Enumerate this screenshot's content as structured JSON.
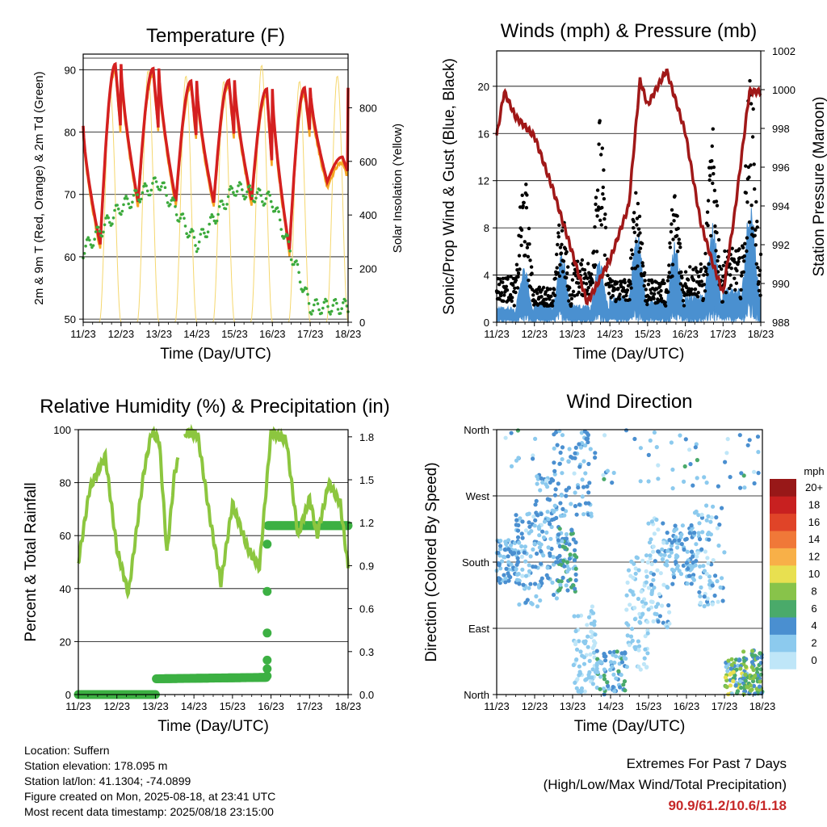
{
  "chart_data": [
    {
      "type": "line",
      "title": "Temperature (F)",
      "xlabel": "Time (Day/UTC)",
      "ylabel": "2m & 9m T (Red, Orange) & 2m Td (Green)",
      "ylabel_right": "Solar Insolation (Yellow)",
      "x_ticks": [
        "11/23",
        "12/23",
        "13/23",
        "14/23",
        "15/23",
        "16/23",
        "17/23",
        "18/23"
      ],
      "ylim": [
        49.5,
        92.5
      ],
      "y_ticks": [
        50,
        60,
        70,
        80,
        90
      ],
      "ylim_right": [
        0,
        1000
      ],
      "y_ticks_right": [
        0,
        200,
        400,
        600,
        800
      ],
      "colors": {
        "t2m": "#d42020",
        "t9m": "#f5a623",
        "td": "#3caa3c",
        "solar": "#f5d76e"
      },
      "series": [
        {
          "name": "2m T",
          "daily_max": [
            90.9,
            90.2,
            88.2,
            88.3,
            86.9,
            87.1,
            76.0
          ],
          "daily_min": [
            62.0,
            68.8,
            68.9,
            68.7,
            69.1,
            61.2,
            72.0
          ]
        },
        {
          "name": "2m Td",
          "daily_values": [
            61.0,
            68.0,
            72.0,
            62.0,
            71.0,
            69.0,
            52.0
          ]
        },
        {
          "name": "Solar Insolation",
          "daily_peak": [
            860,
            940,
            920,
            900,
            960,
            900,
            920
          ]
        }
      ]
    },
    {
      "type": "scatter",
      "title": "Winds (mph) & Pressure (mb)",
      "xlabel": "Time (Day/UTC)",
      "ylabel": "Sonic/Prop Wind & Gust (Blue, Black)",
      "ylabel_right": "Station Pressure (Maroon)",
      "x_ticks": [
        "11/23",
        "12/23",
        "13/23",
        "14/23",
        "15/23",
        "16/23",
        "17/23",
        "18/23"
      ],
      "ylim": [
        0,
        23
      ],
      "y_ticks": [
        0,
        4,
        8,
        12,
        16,
        20
      ],
      "ylim_right": [
        988,
        1002
      ],
      "y_ticks_right": [
        988,
        990,
        992,
        994,
        996,
        998,
        1000,
        1002
      ],
      "colors": {
        "wind": "#4a90d0",
        "gust": "#000000",
        "pressure": "#a01818"
      },
      "pressure_series": [
        [
          11.0,
          997.6
        ],
        [
          11.2,
          999.9
        ],
        [
          11.5,
          998.6
        ],
        [
          12.0,
          997.6
        ],
        [
          12.5,
          994.8
        ],
        [
          13.0,
          991.6
        ],
        [
          13.4,
          989.0
        ],
        [
          14.0,
          991.2
        ],
        [
          14.5,
          994.0
        ],
        [
          14.8,
          1000.5
        ],
        [
          15.0,
          999.2
        ],
        [
          15.5,
          1001.0
        ],
        [
          16.0,
          997.8
        ],
        [
          16.4,
          993.2
        ],
        [
          16.7,
          991.2
        ],
        [
          17.0,
          989.5
        ],
        [
          17.3,
          993.5
        ],
        [
          17.7,
          999.9
        ],
        [
          18.0,
          999.9
        ]
      ],
      "gust_daily_peak": [
        12.3,
        9.0,
        17.2,
        11.8,
        11.0,
        16.0,
        20.6
      ],
      "wind_daily_peak": [
        4.8,
        6.0,
        5.5,
        8.0,
        7.0,
        8.5,
        10.6
      ]
    },
    {
      "type": "line",
      "title": "Relative Humidity (%) & Precipitation (in)",
      "xlabel": "Time (Day/UTC)",
      "ylabel": "Percent & Total Rainfall",
      "x_ticks": [
        "11/23",
        "12/23",
        "13/23",
        "14/23",
        "15/23",
        "16/23",
        "17/23",
        "18/23"
      ],
      "ylim": [
        0,
        100
      ],
      "y_ticks": [
        0,
        20,
        40,
        60,
        80,
        100
      ],
      "ylim_right": [
        0,
        1.85
      ],
      "y_ticks_right": [
        "0.0",
        "0.3",
        "0.6",
        "0.9",
        "1.2",
        "1.5",
        "1.8"
      ],
      "colors": {
        "rh": "#8cc63f",
        "precip": "#3cb043"
      },
      "rh_series": [
        [
          11.0,
          50
        ],
        [
          11.3,
          78
        ],
        [
          11.7,
          90
        ],
        [
          12.0,
          55
        ],
        [
          12.3,
          38
        ],
        [
          12.7,
          84
        ],
        [
          12.9,
          99
        ],
        [
          13.1,
          96
        ],
        [
          13.3,
          53
        ],
        [
          13.5,
          84
        ],
        [
          13.8,
          99
        ],
        [
          14.1,
          98
        ],
        [
          14.4,
          68
        ],
        [
          14.7,
          42
        ],
        [
          15.0,
          72
        ],
        [
          15.4,
          55
        ],
        [
          15.7,
          48
        ],
        [
          16.0,
          99
        ],
        [
          16.4,
          96
        ],
        [
          16.7,
          60
        ],
        [
          17.0,
          74
        ],
        [
          17.2,
          60
        ],
        [
          17.5,
          80
        ],
        [
          17.8,
          72
        ],
        [
          18.0,
          48
        ]
      ],
      "precip_series": [
        [
          11.0,
          0.0
        ],
        [
          13.0,
          0.0
        ],
        [
          13.0,
          0.11
        ],
        [
          15.9,
          0.12
        ],
        [
          15.9,
          1.18
        ],
        [
          18.0,
          1.18
        ]
      ]
    },
    {
      "type": "scatter",
      "title": "Wind Direction",
      "xlabel": "Time (Day/UTC)",
      "ylabel": "Direction (Colored By Speed)",
      "x_ticks": [
        "11/23",
        "12/23",
        "13/23",
        "14/23",
        "15/23",
        "16/23",
        "17/23",
        "18/23"
      ],
      "y_ticks": [
        "North",
        "East",
        "South",
        "West",
        "North"
      ],
      "ylim": [
        0,
        360
      ],
      "legend": {
        "title": "mph",
        "labels": [
          "0",
          "2",
          "4",
          "6",
          "8",
          "10",
          "12",
          "14",
          "16",
          "18",
          "20+"
        ],
        "colors": [
          "#bfe6f8",
          "#8ccaee",
          "#4a8fd0",
          "#4aaa6a",
          "#88c34a",
          "#e8e050",
          "#f8b048",
          "#f07838",
          "#e04428",
          "#c82020",
          "#981818"
        ]
      }
    }
  ],
  "info": {
    "location": "Location: Suffern",
    "elevation": "Station elevation: 178.095 m",
    "latlon": "Station lat/lon: 41.1304; -74.0899",
    "created": "Figure created on Mon, 2025-08-18, at 23:41 UTC",
    "recent": "Most recent data timestamp: 2025/08/18 23:15:00"
  },
  "extremes": {
    "title": "Extremes For Past 7 Days",
    "subtitle": "(High/Low/Max Wind/Total Precipitation)",
    "value": "90.9/61.2/10.6/1.18"
  }
}
